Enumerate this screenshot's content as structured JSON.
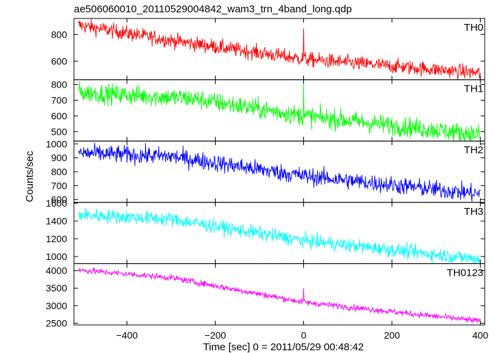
{
  "chart_data": {
    "type": "line",
    "title": "ae506060010_20110529004842_wam3_trn_4band_long.qdp",
    "xlabel": "Time [sec] 0 = 2011/05/29 00:48:42",
    "ylabel": "Counts/sec",
    "xlim": [
      -520,
      410
    ],
    "x_ticks": [
      -400,
      -200,
      0,
      200,
      400
    ],
    "x_tick_labels": [
      "−400",
      "−200",
      "0",
      "200",
      "400"
    ],
    "x_range": [
      -510,
      400
    ],
    "x_step": 1,
    "panels": [
      {
        "name": "TH0",
        "color": "#ff0000",
        "ylim": [
          460,
          920
        ],
        "yticks": [
          600,
          800
        ],
        "trend": [
          [
            -510,
            870
          ],
          [
            -300,
            755
          ],
          [
            0,
            615
          ],
          [
            400,
            510
          ]
        ],
        "noise": 28,
        "spike": {
          "x": 0,
          "value": 845
        }
      },
      {
        "name": "TH1",
        "color": "#00ff00",
        "ylim": [
          440,
          830
        ],
        "yticks": [
          500,
          600,
          700,
          800
        ],
        "trend": [
          [
            -510,
            750
          ],
          [
            -250,
            710
          ],
          [
            0,
            600
          ],
          [
            400,
            480
          ]
        ],
        "noise": 32,
        "spike": {
          "x": 0,
          "value": 800
        }
      },
      {
        "name": "TH2",
        "color": "#0000ff",
        "ylim": [
          580,
          1020
        ],
        "yticks": [
          600,
          700,
          800,
          900,
          1000
        ],
        "trend": [
          [
            -510,
            935
          ],
          [
            -300,
            910
          ],
          [
            0,
            770
          ],
          [
            400,
            640
          ]
        ],
        "noise": 32,
        "spike": null
      },
      {
        "name": "TH3",
        "color": "#00ffff",
        "ylim": [
          920,
          1610
        ],
        "yticks": [
          1000,
          1200,
          1400,
          1600
        ],
        "trend": [
          [
            -510,
            1470
          ],
          [
            -300,
            1420
          ],
          [
            0,
            1180
          ],
          [
            400,
            970
          ]
        ],
        "noise": 40,
        "spike": null
      },
      {
        "name": "TH0123",
        "color": "#ff00ff",
        "ylim": [
          2450,
          4200
        ],
        "yticks": [
          2500,
          3000,
          3500,
          4000
        ],
        "trend": [
          [
            -510,
            4020
          ],
          [
            -300,
            3800
          ],
          [
            0,
            3100
          ],
          [
            400,
            2560
          ]
        ],
        "noise": 45,
        "spike": {
          "x": 0,
          "value": 3500
        }
      }
    ]
  }
}
